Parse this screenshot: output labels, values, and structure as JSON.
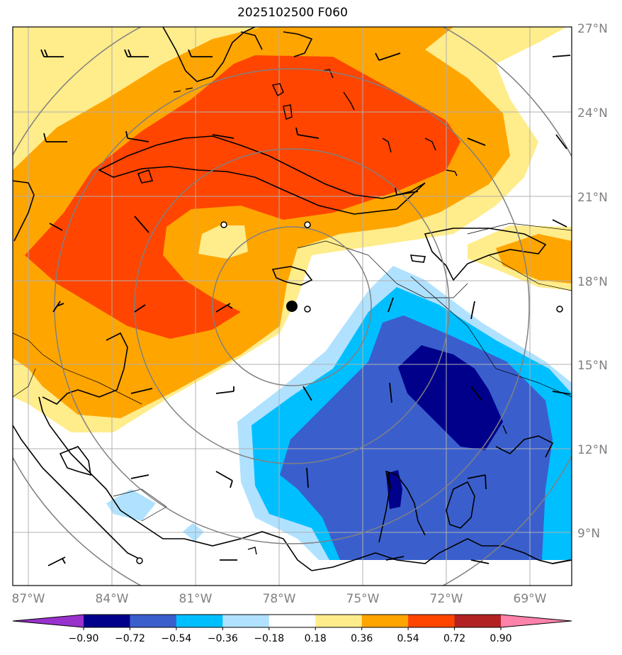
{
  "title": "2025102500 F060",
  "lat_labels": [
    "27°N",
    "24°N",
    "21°N",
    "18°N",
    "15°N",
    "12°N",
    "9°N"
  ],
  "lon_labels": [
    "87°W",
    "84°W",
    "81°W",
    "78°W",
    "75°W",
    "72°W",
    "69°W"
  ],
  "colorbar": {
    "ticks": [
      "−0.90",
      "−0.72",
      "−0.54",
      "−0.36",
      "−0.18",
      "0.18",
      "0.36",
      "0.54",
      "0.72",
      "0.90"
    ],
    "colors": [
      "#9932cc",
      "#00008b",
      "#3a5fcd",
      "#00bfff",
      "#b0e2ff",
      "#ffffff",
      "#ffec8b",
      "#ffa500",
      "#ff4500",
      "#b22222",
      "#ff82ab"
    ]
  },
  "colors": {
    "pos_light": "#ffec8b",
    "pos_mid": "#ffa500",
    "pos_strong": "#ff4500",
    "neg_light": "#b0e2ff",
    "neg_mid": "#00bfff",
    "neg_strong": "#3a5fcd",
    "neg_max": "#00008b"
  }
}
